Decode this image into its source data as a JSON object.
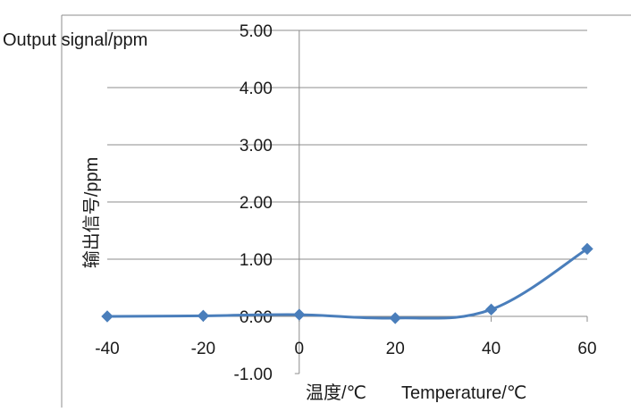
{
  "chart_data": {
    "type": "line",
    "x": [
      -40,
      -20,
      0,
      20,
      40,
      60
    ],
    "series": [
      {
        "values": [
          0.0,
          0.01,
          0.03,
          -0.03,
          0.12,
          1.18
        ]
      }
    ],
    "xlim": [
      -40,
      60
    ],
    "ylim": [
      -1.0,
      5.0
    ],
    "x_ticks": [
      "-40",
      "-20",
      "0",
      "20",
      "40",
      "60"
    ],
    "y_ticks": [
      "5.00",
      "4.00",
      "3.00",
      "2.00",
      "1.00",
      "0.00",
      "-1.00"
    ],
    "ylabel": "输出信号/ppm",
    "ylabel_en": "Output signal/ppm",
    "xlabel": "温度/℃",
    "xlabel_en": "Temperature/℃",
    "grid": true,
    "line_color": "#4a7ebb",
    "marker": "diamond"
  }
}
